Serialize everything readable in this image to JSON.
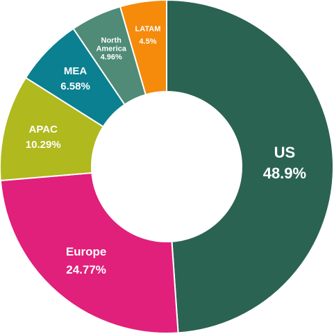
{
  "chart_data": {
    "type": "pie",
    "donut": true,
    "title": "",
    "legend": "none",
    "slices": [
      {
        "label": "US",
        "value": 48.9,
        "value_label": "48.9%",
        "color": "#2a6352"
      },
      {
        "label": "Europe",
        "value": 24.77,
        "value_label": "24.77%",
        "color": "#e0207a"
      },
      {
        "label": "APAC",
        "value": 10.29,
        "value_label": "10.29%",
        "color": "#b0b91d"
      },
      {
        "label": "MEA",
        "value": 6.58,
        "value_label": "6.58%",
        "color": "#0a8090"
      },
      {
        "label": "North America",
        "value": 4.96,
        "value_label": "4.96%",
        "color": "#4f8b77"
      },
      {
        "label": "LATAM",
        "value": 4.5,
        "value_label": "4.5%",
        "color": "#f58a0b"
      }
    ]
  }
}
